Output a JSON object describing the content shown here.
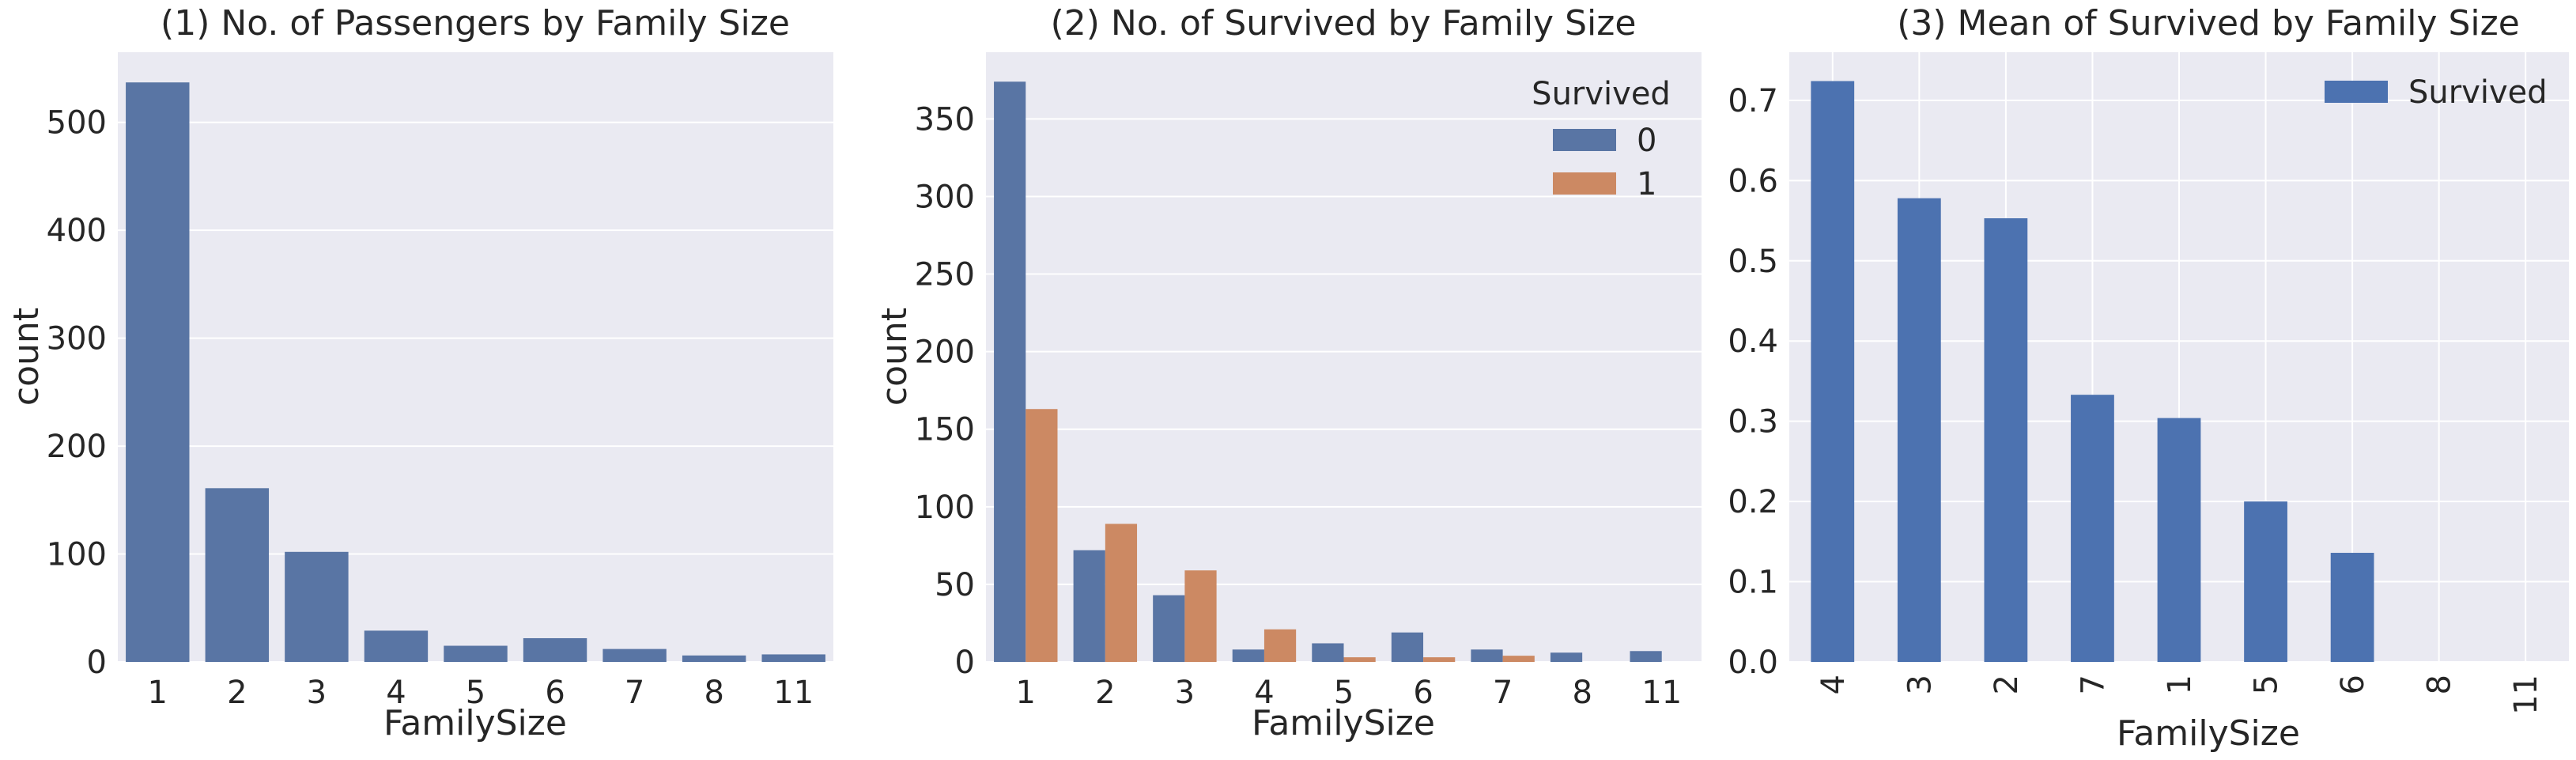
{
  "colors": {
    "background": "#EAEAF2",
    "grid": "#FFFFFF",
    "blue_seaborn": "#5975A4",
    "orange_seaborn": "#CC8963",
    "blue_pandas": "#4C72B0",
    "text": "#262626"
  },
  "chart_data": [
    {
      "type": "bar",
      "title": "(1) No. of Passengers by Family Size",
      "xlabel": "FamilySize",
      "ylabel": "count",
      "categories": [
        "1",
        "2",
        "3",
        "4",
        "5",
        "6",
        "7",
        "8",
        "11"
      ],
      "values": [
        537,
        161,
        102,
        29,
        15,
        22,
        12,
        6,
        7
      ],
      "ylim": [
        0,
        565
      ],
      "yticks": [
        0,
        100,
        200,
        300,
        400,
        500
      ],
      "grid": true
    },
    {
      "type": "bar",
      "title": "(2) No. of Survived by Family Size",
      "xlabel": "FamilySize",
      "ylabel": "count",
      "categories": [
        "1",
        "2",
        "3",
        "4",
        "5",
        "6",
        "7",
        "8",
        "11"
      ],
      "series": [
        {
          "name": "0",
          "values": [
            374,
            72,
            43,
            8,
            12,
            19,
            8,
            6,
            7
          ]
        },
        {
          "name": "1",
          "values": [
            163,
            89,
            59,
            21,
            3,
            3,
            4,
            0,
            0
          ]
        }
      ],
      "legend": {
        "title": "Survived",
        "placement": "upper-right"
      },
      "ylim": [
        0,
        393
      ],
      "yticks": [
        0,
        50,
        100,
        150,
        200,
        250,
        300,
        350
      ],
      "grid": true
    },
    {
      "type": "bar",
      "title": "(3) Mean of Survived by Family Size",
      "xlabel": "FamilySize",
      "ylabel": "",
      "categories": [
        "4",
        "3",
        "2",
        "7",
        "1",
        "5",
        "6",
        "8",
        "11"
      ],
      "series": [
        {
          "name": "Survived",
          "values": [
            0.724,
            0.578,
            0.553,
            0.333,
            0.304,
            0.2,
            0.136,
            0.0,
            0.0
          ]
        }
      ],
      "legend": {
        "placement": "upper-right"
      },
      "ylim": [
        0,
        0.76
      ],
      "yticks": [
        "0.0",
        "0.1",
        "0.2",
        "0.3",
        "0.4",
        "0.5",
        "0.6",
        "0.7"
      ],
      "xtick_rotation": 90,
      "grid": true
    }
  ]
}
